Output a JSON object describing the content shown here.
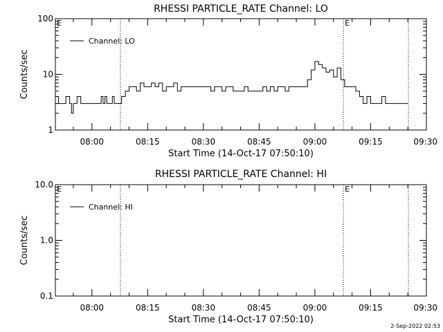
{
  "footer_timestamp": "2-Sep-2022 02:53",
  "chart_data": [
    {
      "type": "line",
      "title": "RHESSI PARTICLE_RATE Channel: LO",
      "xlabel": "Start Time (14-Oct-17 07:50:10)",
      "ylabel": "Counts/sec",
      "yscale": "log",
      "ylim": [
        1,
        100
      ],
      "xlim": [
        "07:50:10",
        "09:30:00"
      ],
      "x_ticks": [
        "08:00",
        "08:15",
        "08:30",
        "08:45",
        "09:00",
        "09:15",
        "09:30"
      ],
      "y_ticks": [
        "1",
        "10",
        "100"
      ],
      "legend": {
        "placement": "top-left",
        "entries": [
          "Channel: LO"
        ]
      },
      "grid": false,
      "event_markers": [
        {
          "time": "08:07:40",
          "label": ""
        },
        {
          "time": "09:07:40",
          "label": "E"
        },
        {
          "time": "09:25:10",
          "label": ""
        }
      ],
      "start_marker_label": "E",
      "series": [
        {
          "name": "Channel: LO",
          "x": [
            "07:50:10",
            "07:51:00",
            "07:51:30",
            "07:52:00",
            "07:53:00",
            "07:53:30",
            "07:54:00",
            "07:54:30",
            "07:55:00",
            "07:56:00",
            "07:56:30",
            "07:57:00",
            "07:58:00",
            "07:59:00",
            "08:00:00",
            "08:01:00",
            "08:02:00",
            "08:02:30",
            "08:03:00",
            "08:03:30",
            "08:04:00",
            "08:05:00",
            "08:05:30",
            "08:06:00",
            "08:07:00",
            "08:08:00",
            "08:09:00",
            "08:10:00",
            "08:11:00",
            "08:12:00",
            "08:13:00",
            "08:14:00",
            "08:15:00",
            "08:16:00",
            "08:17:00",
            "08:18:00",
            "08:19:00",
            "08:20:00",
            "08:21:00",
            "08:22:00",
            "08:23:00",
            "08:24:00",
            "08:25:00",
            "08:26:00",
            "08:27:00",
            "08:28:00",
            "08:29:00",
            "08:30:00",
            "08:31:00",
            "08:32:00",
            "08:33:00",
            "08:34:00",
            "08:35:00",
            "08:36:00",
            "08:37:00",
            "08:38:00",
            "08:39:00",
            "08:40:00",
            "08:41:00",
            "08:42:00",
            "08:43:00",
            "08:44:00",
            "08:45:00",
            "08:46:00",
            "08:47:00",
            "08:48:00",
            "08:49:00",
            "08:50:00",
            "08:51:00",
            "08:52:00",
            "08:53:00",
            "08:54:00",
            "08:55:00",
            "08:56:00",
            "08:57:00",
            "08:58:00",
            "08:59:00",
            "09:00:00",
            "09:01:00",
            "09:02:00",
            "09:03:00",
            "09:04:00",
            "09:05:00",
            "09:06:00",
            "09:07:00",
            "09:08:00",
            "09:09:00",
            "09:10:00",
            "09:11:00",
            "09:12:00",
            "09:12:30",
            "09:13:00",
            "09:13:30",
            "09:14:00",
            "09:15:00",
            "09:16:00",
            "09:17:00",
            "09:18:00",
            "09:19:00",
            "09:20:00",
            "09:21:00",
            "09:22:00",
            "09:23:00",
            "09:24:00",
            "09:25:00"
          ],
          "y": [
            4,
            3,
            3,
            3,
            4,
            4,
            3,
            2,
            3,
            4,
            4,
            3,
            3,
            3,
            3,
            3,
            3,
            4,
            3,
            4,
            3,
            3,
            4,
            3,
            3,
            4,
            5,
            6,
            6,
            5,
            7,
            6,
            6,
            7,
            6,
            7,
            5,
            6,
            6,
            7,
            5,
            6,
            6,
            6,
            6,
            6,
            6,
            6,
            6,
            5,
            6,
            6,
            5,
            6,
            6,
            5,
            5,
            5,
            6,
            5,
            5,
            5,
            5,
            6,
            5,
            6,
            5,
            6,
            6,
            5,
            6,
            6,
            6,
            6,
            6,
            8,
            12,
            17,
            15,
            13,
            11,
            12,
            9,
            13,
            8,
            6,
            6,
            6,
            5,
            4,
            4,
            3,
            3,
            4,
            3,
            3,
            3,
            4,
            3,
            3,
            3,
            3,
            3,
            3,
            3
          ]
        }
      ]
    },
    {
      "type": "line",
      "title": "RHESSI PARTICLE_RATE Channel: HI",
      "xlabel": "Start Time (14-Oct-17 07:50:10)",
      "ylabel": "Counts/sec",
      "yscale": "log",
      "ylim": [
        0.1,
        10.0
      ],
      "xlim": [
        "07:50:10",
        "09:30:00"
      ],
      "x_ticks": [
        "08:00",
        "08:15",
        "08:30",
        "08:45",
        "09:00",
        "09:15",
        "09:30"
      ],
      "y_ticks": [
        "0.1",
        "1.0",
        "10.0"
      ],
      "legend": {
        "placement": "top-left",
        "entries": [
          "Channel: HI"
        ]
      },
      "grid": false,
      "event_markers": [
        {
          "time": "08:07:40",
          "label": ""
        },
        {
          "time": "09:07:40",
          "label": "E"
        },
        {
          "time": "09:25:10",
          "label": ""
        }
      ],
      "start_marker_label": "E",
      "series": [
        {
          "name": "Channel: HI",
          "x": [],
          "y": []
        }
      ]
    }
  ]
}
